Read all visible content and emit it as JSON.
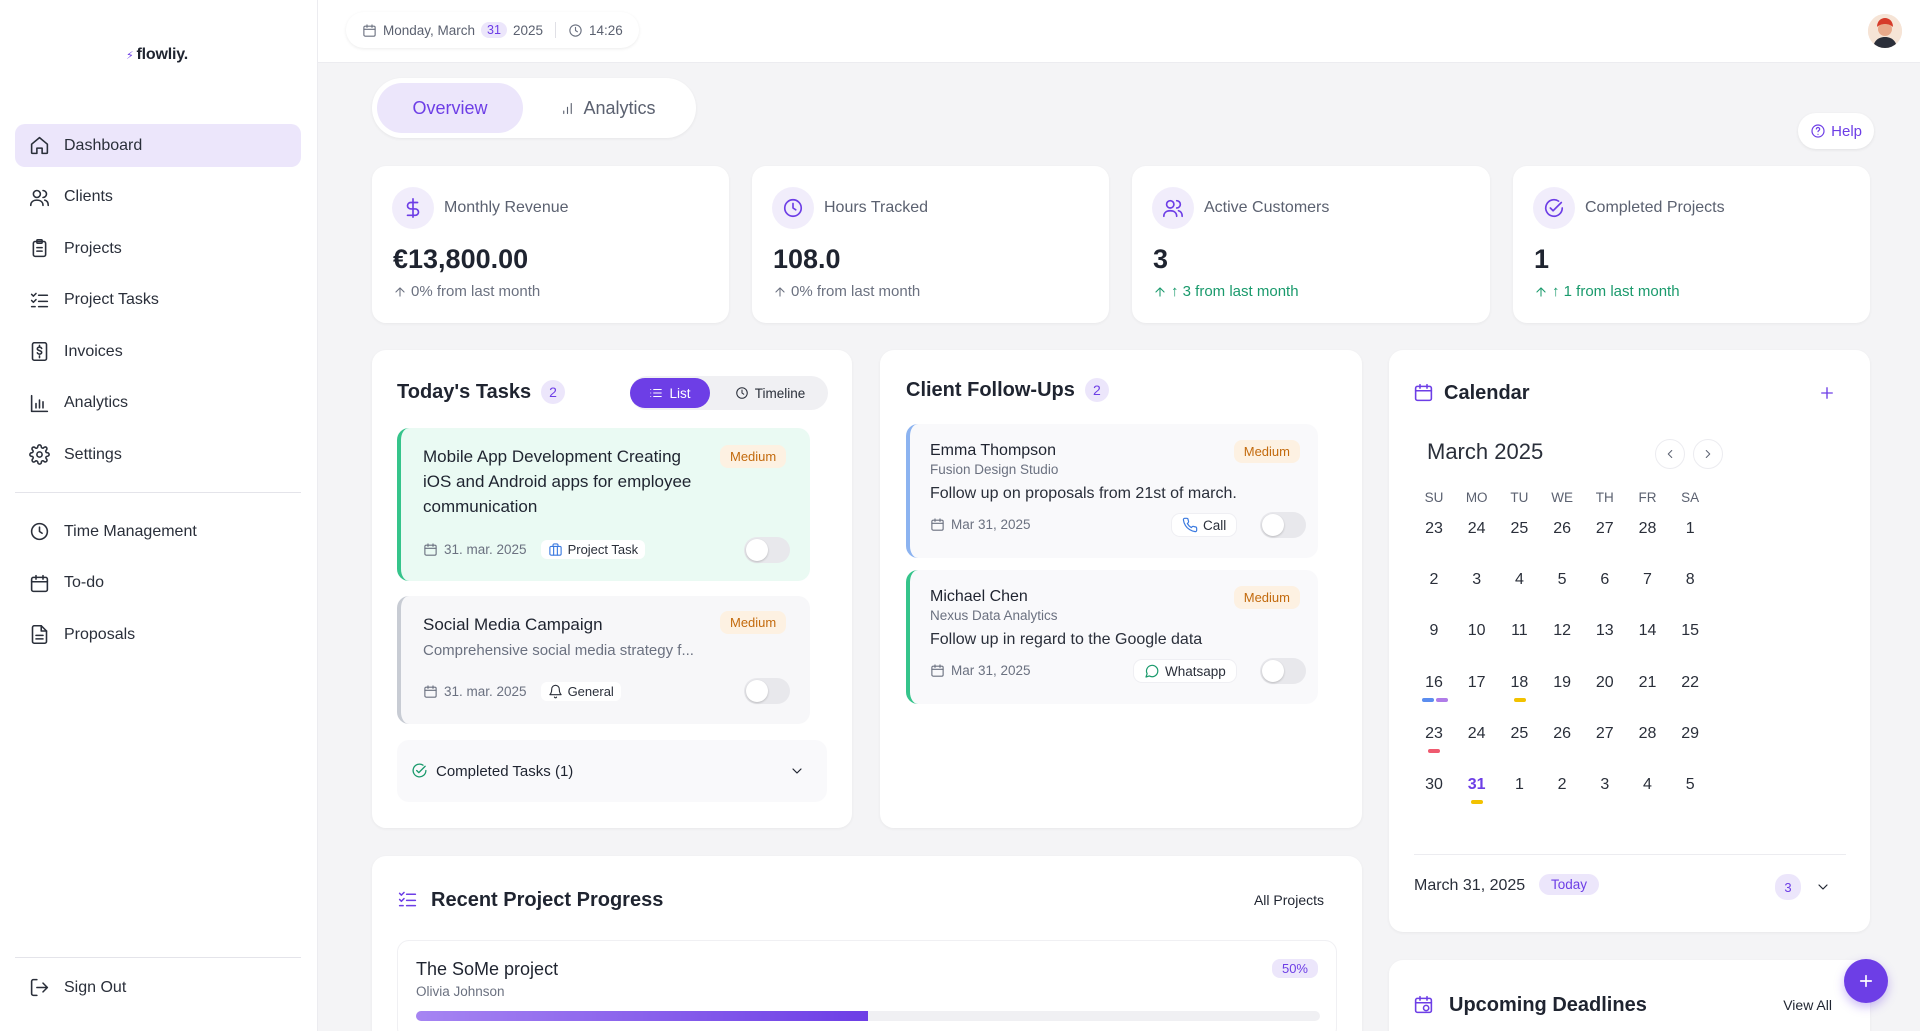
{
  "brand": {
    "logo_text": "flowliy."
  },
  "sidebar": {
    "items": [
      {
        "label": "Dashboard",
        "icon": "home-icon"
      },
      {
        "label": "Clients",
        "icon": "users-icon"
      },
      {
        "label": "Projects",
        "icon": "clipboard-icon"
      },
      {
        "label": "Project Tasks",
        "icon": "list-check-icon"
      },
      {
        "label": "Invoices",
        "icon": "invoice-icon"
      },
      {
        "label": "Analytics",
        "icon": "bar-chart-icon"
      },
      {
        "label": "Settings",
        "icon": "gear-icon"
      }
    ],
    "secondary": [
      {
        "label": "Time Management",
        "icon": "clock-icon"
      },
      {
        "label": "To-do",
        "icon": "calendar-icon"
      },
      {
        "label": "Proposals",
        "icon": "document-icon"
      }
    ],
    "signout": "Sign Out"
  },
  "topbar": {
    "weekday": "Monday, March",
    "day": "31",
    "year": "2025",
    "time": "14:26"
  },
  "tabs": {
    "overview": "Overview",
    "analytics": "Analytics"
  },
  "help": "Help",
  "stats": [
    {
      "label": "Monthly Revenue",
      "value": "€13,800.00",
      "delta": "0% from last month",
      "icon": "dollar-icon"
    },
    {
      "label": "Hours Tracked",
      "value": "108.0",
      "delta": "0% from last month",
      "icon": "clock-icon"
    },
    {
      "label": "Active Customers",
      "value": "3",
      "delta": "↑ 3 from last month",
      "icon": "users-icon"
    },
    {
      "label": "Completed Projects",
      "value": "1",
      "delta": "↑ 1 from last month",
      "icon": "check-circle-icon"
    }
  ],
  "tasks": {
    "title": "Today's Tasks",
    "count": "2",
    "view_list": "List",
    "view_timeline": "Timeline",
    "items": [
      {
        "title_line1": "Mobile App Development Creating",
        "title_line2": "iOS and Android apps for employee",
        "title_line3": "communication",
        "priority": "Medium",
        "date": "31. mar. 2025",
        "tag": "Project Task"
      },
      {
        "title": "Social Media Campaign",
        "desc": "Comprehensive social media strategy f...",
        "priority": "Medium",
        "date": "31. mar. 2025",
        "tag": "General"
      }
    ],
    "completed": "Completed Tasks (1)"
  },
  "followups": {
    "title": "Client Follow-Ups",
    "count": "2",
    "items": [
      {
        "name": "Emma Thompson",
        "company": "Fusion Design Studio",
        "note": "Follow up on proposals from 21st of march.",
        "priority": "Medium",
        "date": "Mar 31, 2025",
        "channel": "Call"
      },
      {
        "name": "Michael Chen",
        "company": "Nexus Data Analytics",
        "note": "Follow up in regard to the Google data",
        "priority": "Medium",
        "date": "Mar 31, 2025",
        "channel": "Whatsapp"
      }
    ]
  },
  "calendar": {
    "title": "Calendar",
    "month": "March 2025",
    "weekdays": [
      "SU",
      "MO",
      "TU",
      "WE",
      "TH",
      "FR",
      "SA"
    ],
    "weeks": [
      [
        "23",
        "24",
        "25",
        "26",
        "27",
        "28",
        "1"
      ],
      [
        "2",
        "3",
        "4",
        "5",
        "6",
        "7",
        "8"
      ],
      [
        "9",
        "10",
        "11",
        "12",
        "13",
        "14",
        "15"
      ],
      [
        "16",
        "17",
        "18",
        "19",
        "20",
        "21",
        "22"
      ],
      [
        "23",
        "24",
        "25",
        "26",
        "27",
        "28",
        "29"
      ],
      [
        "30",
        "31",
        "1",
        "2",
        "3",
        "4",
        "5"
      ]
    ],
    "today": "31",
    "selected_date": "March 31, 2025",
    "today_label": "Today",
    "event_count": "3",
    "colors": {
      "blue": "#5b8def",
      "purple": "#b07ce8",
      "yellow": "#f2c200",
      "red": "#ef5a6f"
    }
  },
  "progress": {
    "title": "Recent Project Progress",
    "all_link": "All Projects",
    "projects": [
      {
        "name": "The SoMe project",
        "owner": "Olivia Johnson",
        "percent_label": "50%",
        "percent": 50
      }
    ]
  },
  "deadlines": {
    "title": "Upcoming Deadlines",
    "view_all": "View All"
  },
  "accent": "#6d3ee6"
}
